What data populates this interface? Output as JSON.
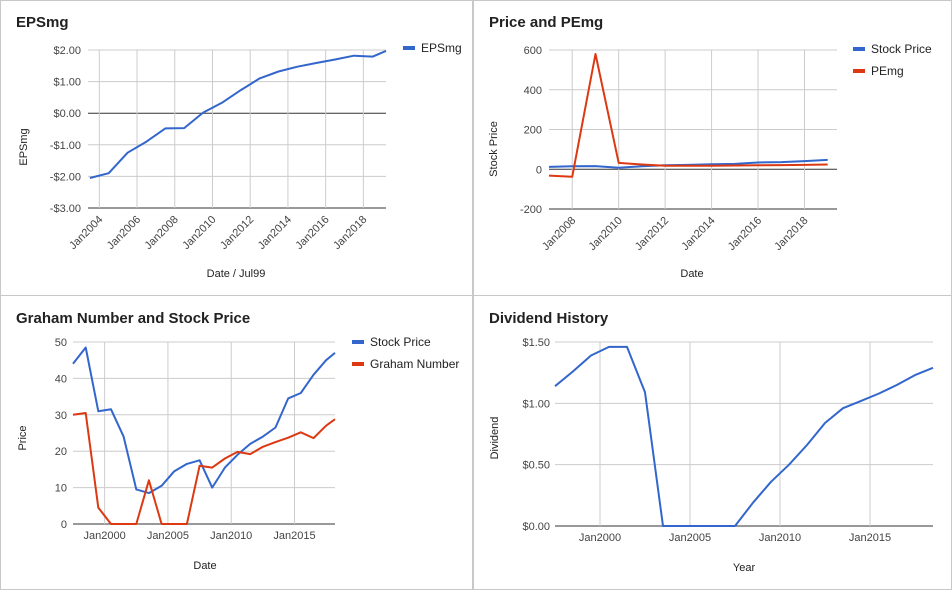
{
  "colors": {
    "blue": "#3366cc",
    "red": "#dc3912",
    "grid": "#cccccc"
  },
  "chart_data": [
    {
      "id": "eps",
      "type": "line",
      "title": "EPSmg",
      "xlabel": "Date / Jul99",
      "ylabel": "EPSmg",
      "xlim": [
        2003.4,
        2019.2
      ],
      "ylim": [
        -3.0,
        2.0
      ],
      "yticks": [
        -3,
        -2,
        -1,
        0,
        1,
        2
      ],
      "ytick_labels": [
        "-$3.00",
        "-$2.00",
        "-$1.00",
        "$0.00",
        "$1.00",
        "$2.00"
      ],
      "xticks": [
        2004,
        2006,
        2008,
        2010,
        2012,
        2014,
        2016,
        2018
      ],
      "xtick_labels": [
        "Jan2004",
        "Jan2006",
        "Jan2008",
        "Jan2010",
        "Jan2012",
        "Jan2014",
        "Jan2016",
        "Jan2018"
      ],
      "legend": "right",
      "series": [
        {
          "name": "EPSmg",
          "color": "#3366cc",
          "x": [
            2003.5,
            2004.5,
            2005.5,
            2006.5,
            2007.5,
            2008.5,
            2009.5,
            2010.5,
            2011.5,
            2012.5,
            2013.5,
            2014.5,
            2015.5,
            2016.5,
            2017.5,
            2018.5,
            2019.2
          ],
          "y": [
            -2.05,
            -1.9,
            -1.25,
            -0.9,
            -0.48,
            -0.47,
            0.02,
            0.33,
            0.73,
            1.1,
            1.32,
            1.47,
            1.59,
            1.7,
            1.82,
            1.79,
            1.97
          ]
        }
      ]
    },
    {
      "id": "price_pe",
      "type": "line",
      "title": "Price and PEmg",
      "xlabel": "Date",
      "ylabel": "Stock Price",
      "xlim": [
        2007.0,
        2019.4
      ],
      "ylim": [
        -200,
        600
      ],
      "yticks": [
        -200,
        0,
        200,
        400,
        600
      ],
      "ytick_labels": [
        "-200",
        "0",
        "200",
        "400",
        "600"
      ],
      "xticks": [
        2008,
        2010,
        2012,
        2014,
        2016,
        2018
      ],
      "xtick_labels": [
        "Jan2008",
        "Jan2010",
        "Jan2012",
        "Jan2014",
        "Jan2016",
        "Jan2018"
      ],
      "legend": "right",
      "series": [
        {
          "name": "Stock Price",
          "color": "#3366cc",
          "x": [
            2007.0,
            2008.0,
            2009.0,
            2010.0,
            2011.0,
            2012.0,
            2013.0,
            2014.0,
            2015.0,
            2016.0,
            2017.0,
            2018.0,
            2019.0
          ],
          "y": [
            12,
            15,
            16,
            8,
            15,
            20,
            22,
            25,
            27,
            34,
            36,
            41,
            47
          ]
        },
        {
          "name": "PEmg",
          "color": "#dc3912",
          "x": [
            2007.0,
            2008.0,
            2009.0,
            2010.0,
            2011.0,
            2012.0,
            2013.0,
            2014.0,
            2015.0,
            2016.0,
            2017.0,
            2018.0,
            2019.0
          ],
          "y": [
            -32,
            -38,
            580,
            32,
            24,
            18,
            18,
            18,
            19,
            20,
            21,
            22,
            24
          ]
        }
      ]
    },
    {
      "id": "graham",
      "type": "line",
      "title": "Graham Number and Stock Price",
      "xlabel": "Date",
      "ylabel": "Price",
      "xlim": [
        1997.5,
        2018.2
      ],
      "ylim": [
        0,
        50
      ],
      "yticks": [
        0,
        10,
        20,
        30,
        40,
        50
      ],
      "ytick_labels": [
        "0",
        "10",
        "20",
        "30",
        "40",
        "50"
      ],
      "xticks": [
        2000,
        2005,
        2010,
        2015
      ],
      "xtick_labels": [
        "Jan2000",
        "Jan2005",
        "Jan2010",
        "Jan2015"
      ],
      "legend": "right",
      "series": [
        {
          "name": "Stock Price",
          "color": "#3366cc",
          "x": [
            1997.5,
            1998.5,
            1999.5,
            2000.5,
            2001.5,
            2002.5,
            2003.5,
            2004.5,
            2005.5,
            2006.5,
            2007.5,
            2008.5,
            2009.5,
            2010.5,
            2011.5,
            2012.5,
            2013.5,
            2014.5,
            2015.5,
            2016.5,
            2017.5,
            2018.2
          ],
          "y": [
            44,
            48.5,
            31,
            31.5,
            24,
            9.5,
            8.5,
            10.5,
            14.5,
            16.5,
            17.5,
            10,
            15.5,
            19,
            22,
            24,
            26.5,
            34.5,
            36,
            41,
            45,
            47
          ]
        },
        {
          "name": "Graham Number",
          "color": "#dc3912",
          "x": [
            1997.5,
            1998.5,
            1999.5,
            2000.5,
            2001.5,
            2002.5,
            2003.5,
            2004.5,
            2005.5,
            2006.5,
            2007.5,
            2008.5,
            2009.5,
            2010.5,
            2011.5,
            2012.5,
            2013.5,
            2014.5,
            2015.5,
            2016.5,
            2017.5,
            2018.2
          ],
          "y": [
            30,
            30.5,
            4.5,
            0,
            0,
            0,
            12,
            0,
            0,
            0,
            16,
            15.5,
            18,
            19.8,
            19.2,
            21.2,
            22.5,
            23.7,
            25.2,
            23.6,
            27,
            28.8
          ]
        }
      ]
    },
    {
      "id": "dividend",
      "type": "line",
      "title": "Dividend History",
      "xlabel": "Year",
      "ylabel": "Dividend",
      "xlim": [
        1997.5,
        2018.5
      ],
      "ylim": [
        0,
        1.5
      ],
      "yticks": [
        0,
        0.5,
        1.0,
        1.5
      ],
      "ytick_labels": [
        "$0.00",
        "$0.50",
        "$1.00",
        "$1.50"
      ],
      "xticks": [
        2000,
        2005,
        2010,
        2015
      ],
      "xtick_labels": [
        "Jan2000",
        "Jan2005",
        "Jan2010",
        "Jan2015"
      ],
      "legend": "none",
      "series": [
        {
          "name": "",
          "color": "#3366cc",
          "x": [
            1997.5,
            1998.5,
            1999.5,
            2000.5,
            2001.5,
            2002.5,
            2003.5,
            2004.5,
            2005.5,
            2006.5,
            2007.5,
            2008.5,
            2009.5,
            2010.5,
            2011.5,
            2012.5,
            2013.5,
            2014.5,
            2015.5,
            2016.5,
            2017.5,
            2018.5
          ],
          "y": [
            1.14,
            1.26,
            1.39,
            1.46,
            1.46,
            1.09,
            0.0,
            0.0,
            0.0,
            0.0,
            0.0,
            0.19,
            0.36,
            0.5,
            0.66,
            0.84,
            0.96,
            1.02,
            1.08,
            1.15,
            1.23,
            1.29
          ]
        }
      ]
    }
  ]
}
